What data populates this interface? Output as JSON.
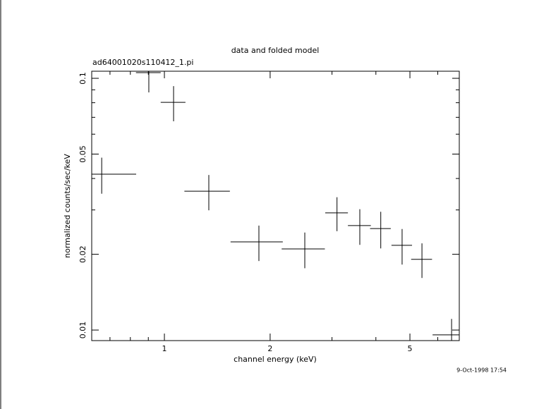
{
  "chart_data": {
    "type": "errorbar",
    "title": "data and folded model",
    "subtitle": "ad64001020s110412_1.pi",
    "xlabel": "channel energy (keV)",
    "ylabel": "normalized counts/sec/keV",
    "timestamp": "9-Oct-1998 17:54",
    "xscale": "log",
    "yscale": "log",
    "xlim": [
      0.621,
      6.91
    ],
    "ylim": [
      0.00908,
      0.1067
    ],
    "xticks": [
      1,
      2,
      5
    ],
    "yticks": [
      0.01,
      0.02,
      0.05,
      0.1
    ],
    "xminorticks": [
      0.7,
      0.8,
      0.9,
      3,
      4,
      6
    ],
    "yminorticks": [
      0.03,
      0.04,
      0.06,
      0.07,
      0.08,
      0.09
    ],
    "series": [
      {
        "color": "#000000",
        "x": [
          0.663,
          0.903,
          1.062,
          1.338,
          1.858,
          2.51,
          3.1,
          3.6,
          4.13,
          4.75,
          5.41,
          6.57
        ],
        "xerr": [
          0.168,
          0.073,
          0.086,
          0.198,
          0.315,
          0.353,
          0.23,
          0.27,
          0.28,
          0.32,
          0.37,
          0.77
        ],
        "values": [
          0.0416,
          0.1053,
          0.0803,
          0.0356,
          0.0224,
          0.021,
          0.0292,
          0.026,
          0.0253,
          0.0217,
          0.0191,
          0.00957
        ],
        "yerr": [
          0.0068,
          0.0174,
          0.0128,
          0.0057,
          0.0036,
          0.0034,
          0.0045,
          0.0042,
          0.0042,
          0.0035,
          0.003,
          0.0015
        ]
      }
    ]
  }
}
